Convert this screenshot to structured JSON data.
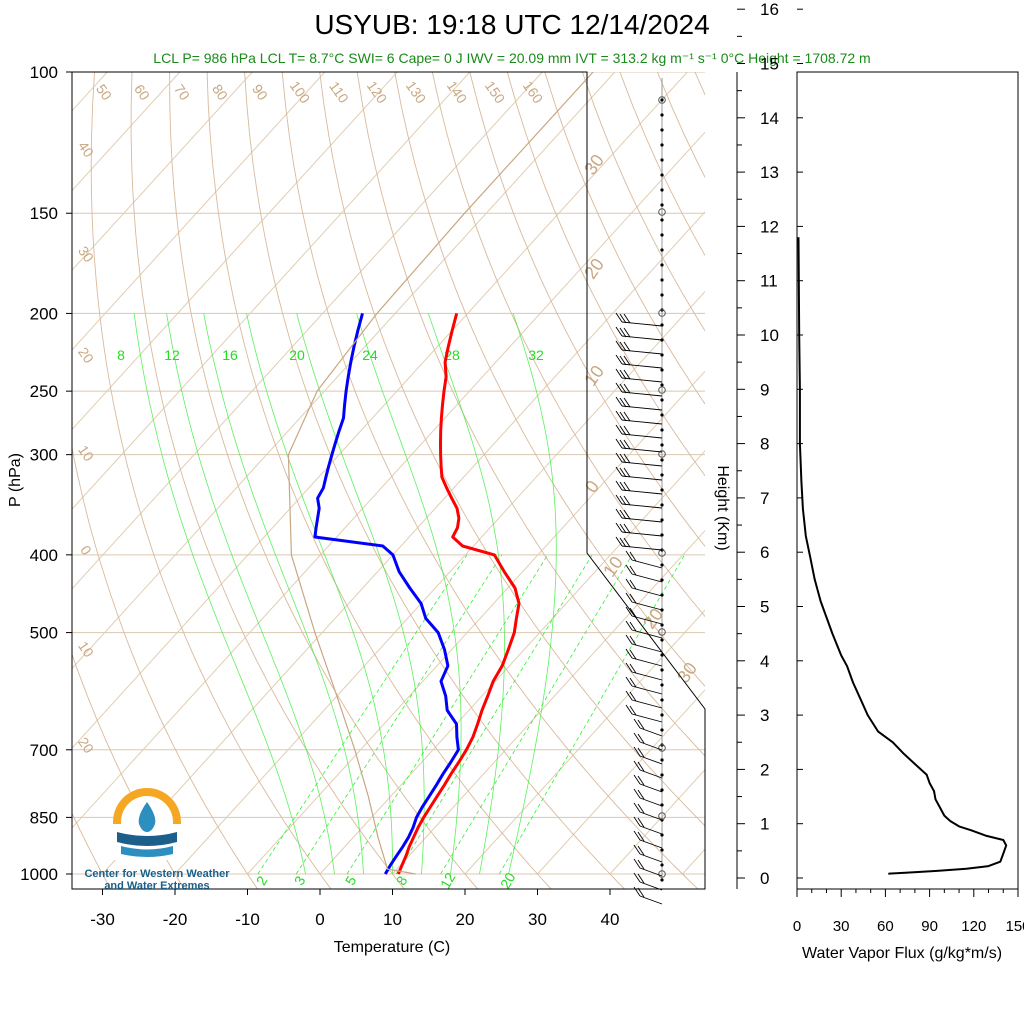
{
  "chart_data": [
    {
      "type": "skew-t",
      "title": "USYUB: 19:18 UTC 12/14/2024",
      "info_line": "LCL P= 986 hPa  LCL T= 8.7°C  SWI= 6  Cape= 0 J  IWV = 20.09 mm  IVT = 313.2 kg m⁻¹ s⁻¹  0°C Height = 1708.72 m",
      "xlabel": "Temperature (C)",
      "ylabel": "P (hPa)",
      "x_ticks": [
        -30,
        -20,
        -10,
        0,
        10,
        20,
        30,
        40
      ],
      "xlim": [
        -33,
        52
      ],
      "p_ticks": [
        100,
        150,
        200,
        250,
        300,
        400,
        500,
        700,
        850,
        1000
      ],
      "ylim": [
        1000,
        100
      ],
      "colors": {
        "temperature": "#ff0000",
        "dewpoint": "#0000ff",
        "dry_adiabat": "#d9b99b",
        "mixing_ratio": "#22dd22",
        "isobar": "#d9c8b0",
        "parcel": "#c8a882"
      },
      "dry_adiabat_labels": [
        "50",
        "60",
        "70",
        "80",
        "90",
        "100",
        "110",
        "120",
        "130",
        "140",
        "150",
        "160",
        "40",
        "30",
        "20",
        "10",
        "0",
        "10",
        "20",
        "30"
      ],
      "isotherm_labels_left": [
        "40",
        "30",
        "20",
        "10",
        "0",
        "10",
        "20"
      ],
      "isotherm_labels_right": [
        "30",
        "20",
        "10",
        "0",
        "10",
        "20",
        "30"
      ],
      "moist_labels_top": [
        "8",
        "12",
        "16",
        "20",
        "24",
        "28",
        "32"
      ],
      "mixing_ratio_labels": [
        "2",
        "3",
        "5",
        "8",
        "12",
        "20"
      ],
      "series": [
        {
          "name": "Temperature",
          "points": [
            [
              1000,
              10.8
            ],
            [
              975,
              10.2
            ],
            [
              950,
              9.6
            ],
            [
              925,
              8.9
            ],
            [
              900,
              8.3
            ],
            [
              875,
              7.7
            ],
            [
              850,
              7.2
            ],
            [
              825,
              6.8
            ],
            [
              800,
              6.4
            ],
            [
              775,
              6.0
            ],
            [
              750,
              5.5
            ],
            [
              725,
              5.1
            ],
            [
              700,
              4.6
            ],
            [
              675,
              3.9
            ],
            [
              650,
              2.9
            ],
            [
              625,
              1.8
            ],
            [
              600,
              0.8
            ],
            [
              575,
              -0.3
            ],
            [
              550,
              -1.0
            ],
            [
              525,
              -2.2
            ],
            [
              500,
              -3.5
            ],
            [
              480,
              -5.0
            ],
            [
              460,
              -6.5
            ],
            [
              440,
              -9.0
            ],
            [
              420,
              -12.5
            ],
            [
              400,
              -16.0
            ],
            [
              390,
              -21.5
            ],
            [
              380,
              -24.0
            ],
            [
              370,
              -24.5
            ],
            [
              360,
              -25.5
            ],
            [
              350,
              -27.0
            ],
            [
              340,
              -29.0
            ],
            [
              330,
              -31.0
            ],
            [
              320,
              -33.0
            ],
            [
              310,
              -34.5
            ],
            [
              300,
              -36.0
            ],
            [
              290,
              -37.5
            ],
            [
              280,
              -39.0
            ],
            [
              270,
              -40.5
            ],
            [
              260,
              -42.0
            ],
            [
              250,
              -43.5
            ],
            [
              240,
              -45.0
            ],
            [
              230,
              -47.0
            ],
            [
              220,
              -48.5
            ],
            [
              210,
              -50.0
            ],
            [
              200,
              -51.5
            ]
          ]
        },
        {
          "name": "Dewpoint",
          "points": [
            [
              1000,
              9.0
            ],
            [
              975,
              8.6
            ],
            [
              950,
              8.3
            ],
            [
              925,
              8.0
            ],
            [
              900,
              7.6
            ],
            [
              875,
              7.0
            ],
            [
              850,
              6.2
            ],
            [
              825,
              5.7
            ],
            [
              800,
              5.3
            ],
            [
              775,
              4.9
            ],
            [
              750,
              4.4
            ],
            [
              725,
              4.0
            ],
            [
              700,
              3.5
            ],
            [
              675,
              1.7
            ],
            [
              650,
              0.0
            ],
            [
              625,
              -3.0
            ],
            [
              600,
              -5.0
            ],
            [
              575,
              -7.5
            ],
            [
              550,
              -8.5
            ],
            [
              525,
              -11.0
            ],
            [
              500,
              -14.0
            ],
            [
              480,
              -17.5
            ],
            [
              460,
              -20.0
            ],
            [
              440,
              -23.5
            ],
            [
              420,
              -27.0
            ],
            [
              400,
              -30.0
            ],
            [
              390,
              -32.5
            ],
            [
              380,
              -43.0
            ],
            [
              370,
              -44.0
            ],
            [
              360,
              -45.0
            ],
            [
              350,
              -46.0
            ],
            [
              340,
              -47.5
            ],
            [
              330,
              -48.0
            ],
            [
              320,
              -49.0
            ],
            [
              310,
              -50.0
            ],
            [
              300,
              -51.0
            ],
            [
              290,
              -52.0
            ],
            [
              280,
              -53.0
            ],
            [
              270,
              -54.0
            ],
            [
              260,
              -55.5
            ],
            [
              250,
              -57.0
            ],
            [
              240,
              -58.5
            ],
            [
              230,
              -60.0
            ],
            [
              220,
              -61.5
            ],
            [
              210,
              -63.0
            ],
            [
              200,
              -64.5
            ]
          ]
        },
        {
          "name": "Parcel",
          "points": [
            [
              1000,
              13.2
            ],
            [
              986,
              8.7
            ],
            [
              900,
              3.4
            ],
            [
              800,
              -3.1
            ],
            [
              700,
              -10.8
            ],
            [
              600,
              -20.0
            ],
            [
              500,
              -31.0
            ],
            [
              400,
              -44.0
            ],
            [
              300,
              -57.0
            ],
            [
              250,
              -61.0
            ],
            [
              200,
              -62.5
            ],
            [
              150,
              -63.0
            ],
            [
              100,
              -63.0
            ]
          ]
        }
      ]
    },
    {
      "type": "line",
      "xlabel": "Water Vapor Flux (g/kg*m/s)",
      "ylabel": "Height (Km)",
      "x_ticks": [
        0,
        30,
        60,
        90,
        120,
        150
      ],
      "xlim": [
        0,
        150
      ],
      "y_ticks": [
        0,
        1,
        2,
        3,
        4,
        5,
        6,
        7,
        8,
        9,
        10,
        11,
        12,
        13,
        14,
        15,
        16
      ],
      "ylim": [
        -0.3,
        16.4
      ],
      "series": [
        {
          "name": "Water Vapor Flux",
          "points": [
            [
              62,
              0.08
            ],
            [
              75,
              0.1
            ],
            [
              95,
              0.13
            ],
            [
              115,
              0.17
            ],
            [
              130,
              0.22
            ],
            [
              138,
              0.3
            ],
            [
              140,
              0.45
            ],
            [
              142,
              0.6
            ],
            [
              140,
              0.7
            ],
            [
              128,
              0.78
            ],
            [
              118,
              0.88
            ],
            [
              110,
              0.95
            ],
            [
              104,
              1.05
            ],
            [
              100,
              1.15
            ],
            [
              97,
              1.3
            ],
            [
              94,
              1.45
            ],
            [
              93,
              1.6
            ],
            [
              90,
              1.75
            ],
            [
              88,
              1.9
            ],
            [
              80,
              2.1
            ],
            [
              72,
              2.3
            ],
            [
              65,
              2.5
            ],
            [
              55,
              2.7
            ],
            [
              48,
              3.0
            ],
            [
              43,
              3.3
            ],
            [
              38,
              3.6
            ],
            [
              34,
              3.9
            ],
            [
              30,
              4.1
            ],
            [
              27,
              4.3
            ],
            [
              24,
              4.5
            ],
            [
              20,
              4.8
            ],
            [
              16,
              5.1
            ],
            [
              12,
              5.5
            ],
            [
              9,
              5.9
            ],
            [
              6,
              6.3
            ],
            [
              4,
              6.8
            ],
            [
              3,
              7.3
            ],
            [
              2,
              8.0
            ],
            [
              2,
              9.0
            ],
            [
              1.5,
              10.0
            ],
            [
              1.2,
              11.0
            ],
            [
              1,
              11.8
            ]
          ]
        }
      ]
    }
  ],
  "logo": {
    "line1": "Center for Western Weather",
    "line2": "and Water Extremes"
  }
}
